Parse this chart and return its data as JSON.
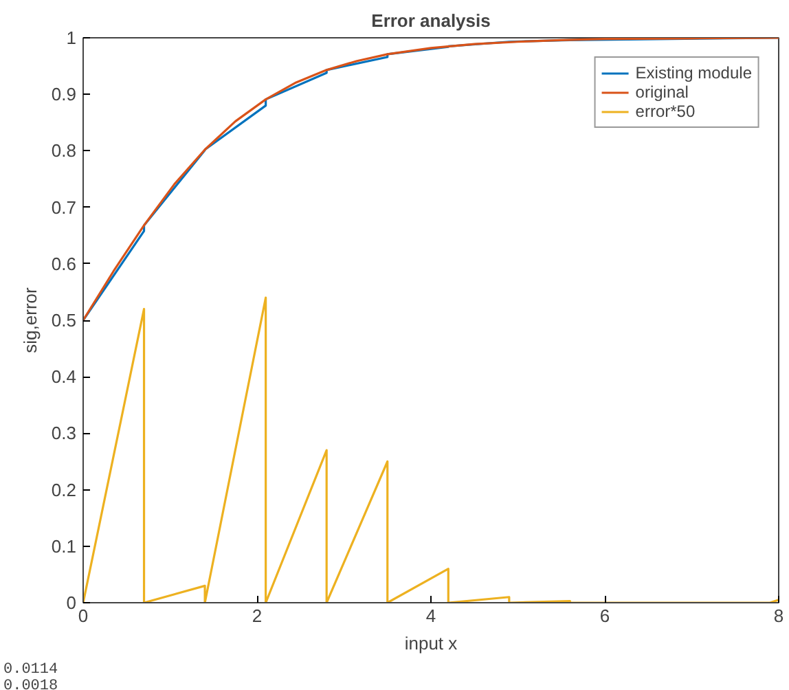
{
  "chart_data": {
    "type": "line",
    "title": "Error analysis",
    "xlabel": "input x",
    "ylabel": "sig,error",
    "xlim": [
      0,
      8
    ],
    "ylim": [
      0,
      1
    ],
    "xticks": [
      0,
      2,
      4,
      6,
      8
    ],
    "yticks": [
      0,
      0.1,
      0.2,
      0.3,
      0.4,
      0.5,
      0.6,
      0.7,
      0.8,
      0.9,
      1
    ],
    "grid": false,
    "legend": "top right",
    "line_style": "solid",
    "marker": "none",
    "series": [
      {
        "name": "Existing module",
        "color": "#0072bd",
        "x": [
          0,
          0.7,
          0.7,
          1.4,
          1.4,
          2.1,
          2.1,
          2.8,
          2.8,
          3.5,
          3.5,
          4.2,
          4.2,
          4.9,
          4.9,
          5.6,
          5.6,
          8
        ],
        "values": [
          0.5,
          0.658,
          0.668,
          0.801,
          0.802,
          0.88,
          0.891,
          0.938,
          0.943,
          0.966,
          0.971,
          0.984,
          0.985,
          0.993,
          0.993,
          0.996,
          0.996,
          1.0
        ]
      },
      {
        "name": "original",
        "color": "#d95319",
        "x": [
          0,
          0.35,
          0.7,
          1.05,
          1.4,
          1.75,
          2.1,
          2.45,
          2.8,
          3.15,
          3.5,
          4,
          4.5,
          5,
          5.5,
          6,
          7,
          8
        ],
        "values": [
          0.5,
          0.587,
          0.668,
          0.741,
          0.802,
          0.852,
          0.891,
          0.921,
          0.943,
          0.959,
          0.971,
          0.982,
          0.989,
          0.993,
          0.996,
          0.998,
          0.999,
          1.0
        ]
      },
      {
        "name": "error*50",
        "color": "#edb120",
        "x": [
          0,
          0.7,
          0.7,
          1.4,
          1.4,
          2.1,
          2.1,
          2.8,
          2.8,
          3.5,
          3.5,
          4.2,
          4.2,
          4.9,
          4.9,
          5.6,
          5.6,
          7.9,
          8
        ],
        "values": [
          0,
          0.52,
          0,
          0.03,
          0,
          0.54,
          0,
          0.27,
          0,
          0.25,
          0,
          0.06,
          0,
          0.01,
          0,
          0.003,
          0,
          0,
          0.005
        ]
      }
    ],
    "annotations": [
      "0.0114",
      "0.0018"
    ]
  }
}
